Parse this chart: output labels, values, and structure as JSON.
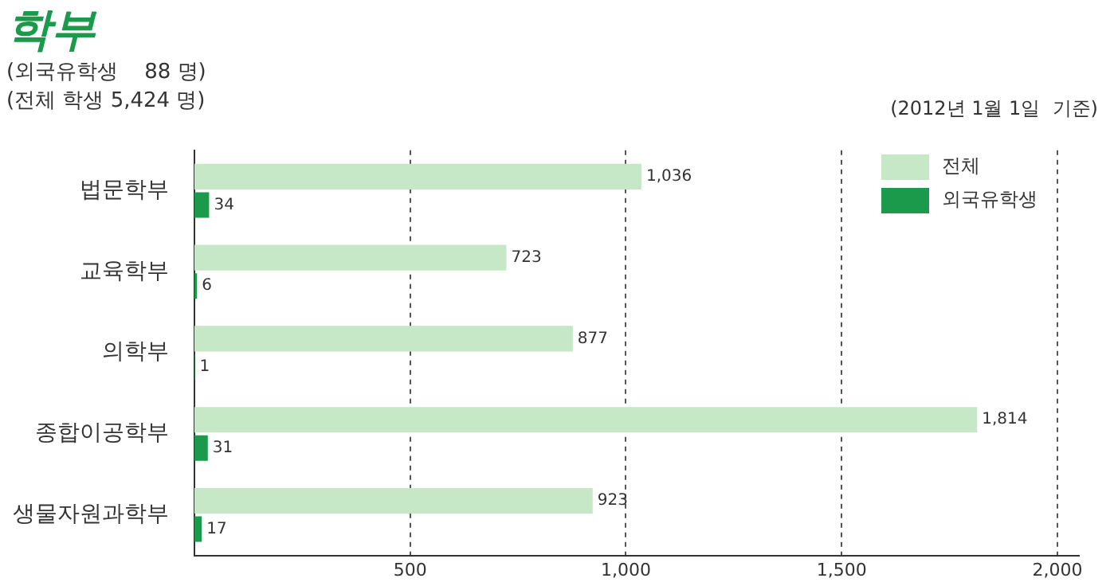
{
  "chart_data": {
    "type": "bar",
    "orientation": "horizontal",
    "title": "학부",
    "subtitle": "(외국유학생    88 명)\n(전체 학생 5,424 명)",
    "annotations": [
      "(2012년 1월 1일  기준)"
    ],
    "categories": [
      "법문학부",
      "교육학부",
      "의학부",
      "종합이공학부",
      "생물자원과학부"
    ],
    "series": [
      {
        "name": "전체",
        "color": "#c6e8c6",
        "values": [
          1036,
          723,
          877,
          1814,
          923
        ],
        "value_labels": [
          "1,036",
          "723",
          "877",
          "1,814",
          "923"
        ]
      },
      {
        "name": "외국유학생",
        "color": "#1b9a4c",
        "values": [
          34,
          6,
          1,
          31,
          17
        ],
        "value_labels": [
          "34",
          "6",
          "1",
          "31",
          "17"
        ]
      }
    ],
    "xlim": [
      0,
      2050
    ],
    "xticks": [
      500,
      {
        "value": 1000,
        "label": "1,000"
      },
      {
        "value": 1500,
        "label": "1,500"
      },
      {
        "value": 2000,
        "label": "2,000"
      }
    ],
    "grid": "x",
    "legend": "top right"
  }
}
